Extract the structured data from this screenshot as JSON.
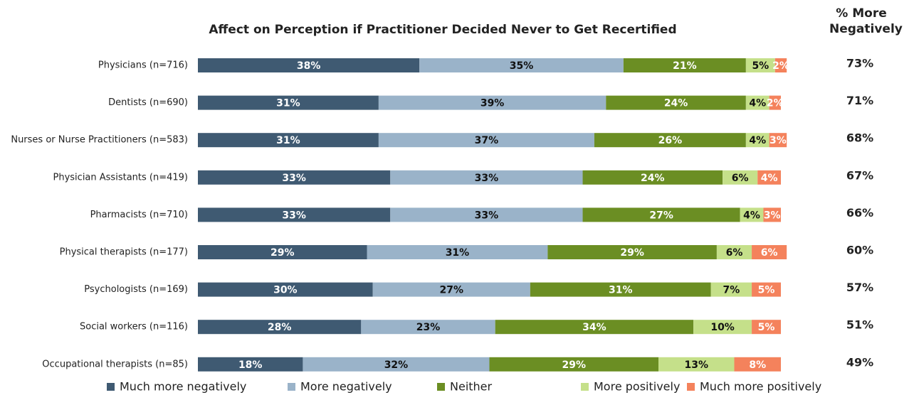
{
  "chart_data": {
    "type": "stacked_bar_horizontal",
    "title": "Affect on Perception if Practitioner Decided Never to Get Recertified",
    "categories": [
      "Physicians (n=716)",
      "Dentists (n=690)",
      "Nurses or Nurse Practitioners (n=583)",
      "Physician Assistants (n=419)",
      "Pharmacists (n=710)",
      "Physical therapists (n=177)",
      "Psychologists (n=169)",
      "Social workers (n=116)",
      "Occupational therapists (n=85)"
    ],
    "xlim": [
      0,
      100
    ],
    "series": [
      {
        "name": "Much more negatively",
        "color": "#3f5a72",
        "values": [
          38,
          31,
          31,
          33,
          33,
          29,
          30,
          28,
          18
        ],
        "value_labels": [
          "38%",
          "31%",
          "31%",
          "33%",
          "33%",
          "29%",
          "30%",
          "28%",
          "18%"
        ]
      },
      {
        "name": "More negatively",
        "color": "#9ab3c9",
        "values": [
          35,
          39,
          37,
          33,
          33,
          31,
          27,
          23,
          32
        ],
        "value_labels": [
          "35%",
          "39%",
          "37%",
          "33%",
          "33%",
          "31%",
          "27%",
          "23%",
          "32%"
        ]
      },
      {
        "name": "Neither",
        "color": "#6b8e23",
        "values": [
          21,
          24,
          26,
          24,
          27,
          29,
          31,
          34,
          29
        ],
        "value_labels": [
          "21%",
          "24%",
          "26%",
          "24%",
          "27%",
          "29%",
          "31%",
          "34%",
          "29%"
        ]
      },
      {
        "name": "More positively",
        "color": "#c5e08a",
        "values": [
          5,
          4,
          4,
          6,
          4,
          6,
          7,
          10,
          13
        ],
        "value_labels": [
          "5%",
          "4%",
          "4%",
          "6%",
          "4%",
          "6%",
          "7%",
          "10%",
          "13%"
        ]
      },
      {
        "name": "Much more positively",
        "color": "#f4825c",
        "values": [
          2,
          2,
          3,
          4,
          3,
          6,
          5,
          5,
          8
        ],
        "value_labels": [
          "2%",
          "2%",
          "3%",
          "4%",
          "3%",
          "6%",
          "5%",
          "5%",
          "8%"
        ]
      }
    ],
    "net_negative": {
      "title": "% More Negatively",
      "values": [
        73,
        71,
        68,
        67,
        66,
        60,
        57,
        51,
        49
      ],
      "value_labels": [
        "73%",
        "71%",
        "68%",
        "67%",
        "66%",
        "60%",
        "57%",
        "51%",
        "49%"
      ]
    }
  }
}
